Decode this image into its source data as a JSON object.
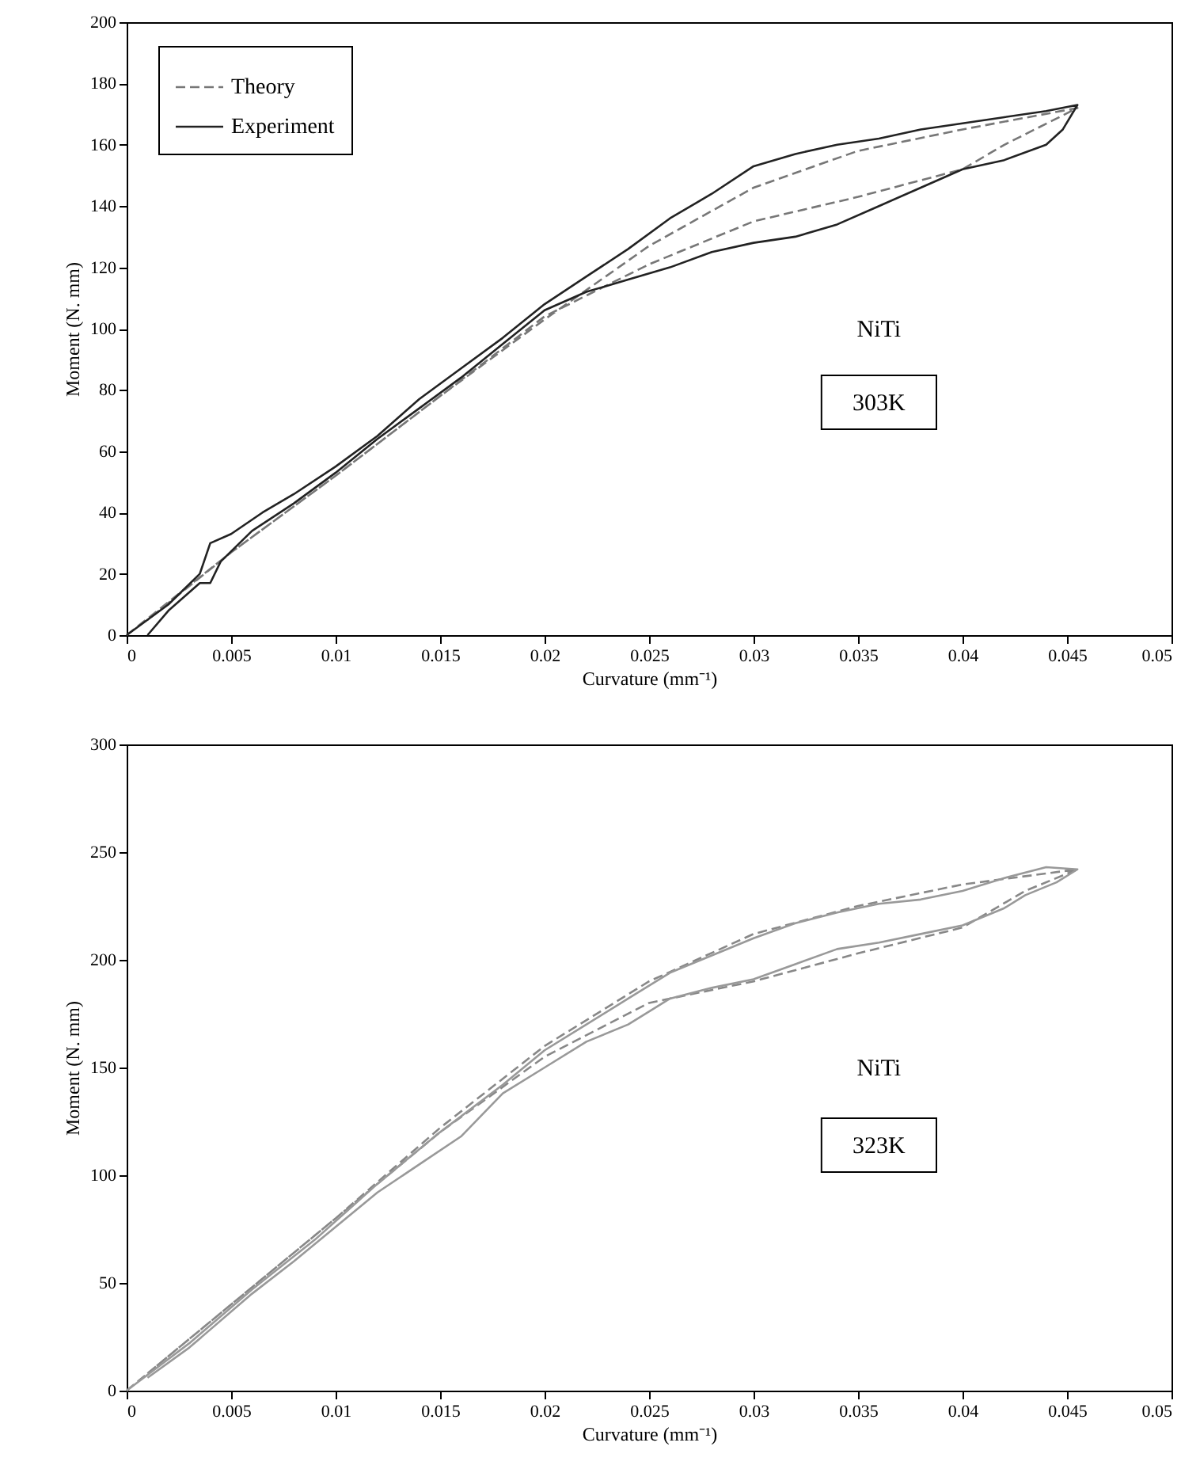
{
  "chart_data": [
    {
      "type": "line",
      "xlabel": "Curvature (mm⁻¹)",
      "ylabel": "Moment (N. mm)",
      "xlim": [
        0,
        0.05
      ],
      "xticks": [
        0,
        0.005,
        0.01,
        0.015,
        0.02,
        0.025,
        0.03,
        0.035,
        0.04,
        0.045,
        0.05
      ],
      "ylim": [
        0,
        200
      ],
      "yticks": [
        0,
        20,
        40,
        60,
        80,
        100,
        120,
        140,
        160,
        180,
        200
      ],
      "legend": "top left",
      "annotations": [
        "NiTi",
        "303K"
      ],
      "series": [
        {
          "name": "Theory",
          "color": "#777777",
          "line_style": "dashed",
          "x": [
            0,
            0.005,
            0.01,
            0.015,
            0.02,
            0.025,
            0.03,
            0.035,
            0.04,
            0.0455,
            0.042,
            0.04,
            0.035,
            0.03,
            0.025,
            0.02,
            0.015,
            0.01,
            0.005,
            0.001
          ],
          "values": [
            0,
            27,
            52,
            78,
            103,
            127,
            146,
            158,
            165,
            172,
            160,
            152,
            143,
            135,
            121,
            104,
            78,
            52,
            27,
            5
          ]
        },
        {
          "name": "Experiment",
          "color": "#222222",
          "line_style": "solid",
          "x": [
            0,
            0.002,
            0.0035,
            0.004,
            0.005,
            0.0065,
            0.008,
            0.01,
            0.012,
            0.014,
            0.016,
            0.018,
            0.02,
            0.022,
            0.024,
            0.026,
            0.028,
            0.03,
            0.032,
            0.034,
            0.036,
            0.038,
            0.04,
            0.042,
            0.044,
            0.0455,
            0.0448,
            0.044,
            0.042,
            0.04,
            0.038,
            0.036,
            0.034,
            0.032,
            0.03,
            0.028,
            0.026,
            0.024,
            0.022,
            0.02,
            0.018,
            0.016,
            0.014,
            0.012,
            0.01,
            0.008,
            0.006,
            0.0045,
            0.004,
            0.0035,
            0.002,
            0.001
          ],
          "values": [
            0,
            10,
            20,
            30,
            33,
            40,
            46,
            55,
            65,
            77,
            87,
            97,
            108,
            117,
            126,
            136,
            144,
            153,
            157,
            160,
            162,
            165,
            167,
            169,
            171,
            173,
            165,
            160,
            155,
            152,
            146,
            140,
            134,
            130,
            128,
            125,
            120,
            116,
            112,
            106,
            95,
            84,
            74,
            64,
            53,
            43,
            34,
            24,
            17,
            17,
            8,
            0
          ]
        }
      ]
    },
    {
      "type": "line",
      "xlabel": "Curvature (mm⁻¹)",
      "ylabel": "Moment (N. mm)",
      "xlim": [
        0,
        0.05
      ],
      "xticks": [
        0,
        0.005,
        0.01,
        0.015,
        0.02,
        0.025,
        0.03,
        0.035,
        0.04,
        0.045,
        0.05
      ],
      "ylim": [
        0,
        300
      ],
      "yticks": [
        0,
        50,
        100,
        150,
        200,
        250,
        300
      ],
      "annotations": [
        "NiTi",
        "323K"
      ],
      "series": [
        {
          "color": "#888888",
          "line_style": "dashed",
          "x": [
            0,
            0.005,
            0.01,
            0.015,
            0.02,
            0.025,
            0.03,
            0.035,
            0.04,
            0.0455,
            0.043,
            0.04,
            0.035,
            0.03,
            0.025,
            0.02,
            0.015,
            0.01,
            0.005,
            0.001
          ],
          "values": [
            0,
            40,
            80,
            122,
            160,
            190,
            212,
            225,
            235,
            242,
            232,
            215,
            203,
            190,
            180,
            155,
            120,
            80,
            40,
            8
          ]
        },
        {
          "color": "#999999",
          "line_style": "solid",
          "x": [
            0,
            0.003,
            0.006,
            0.009,
            0.012,
            0.015,
            0.018,
            0.02,
            0.022,
            0.024,
            0.026,
            0.028,
            0.03,
            0.032,
            0.034,
            0.036,
            0.038,
            0.04,
            0.042,
            0.044,
            0.0455,
            0.0445,
            0.043,
            0.042,
            0.04,
            0.038,
            0.036,
            0.034,
            0.032,
            0.03,
            0.028,
            0.026,
            0.024,
            0.022,
            0.02,
            0.018,
            0.016,
            0.014,
            0.012,
            0.01,
            0.008,
            0.006,
            0.003,
            0.001
          ],
          "values": [
            0,
            22,
            47,
            70,
            96,
            120,
            142,
            158,
            170,
            182,
            194,
            202,
            210,
            217,
            222,
            226,
            228,
            232,
            238,
            243,
            242,
            236,
            230,
            224,
            216,
            212,
            208,
            205,
            198,
            191,
            187,
            182,
            170,
            162,
            150,
            138,
            118,
            105,
            92,
            76,
            60,
            45,
            20,
            6
          ]
        }
      ]
    }
  ]
}
